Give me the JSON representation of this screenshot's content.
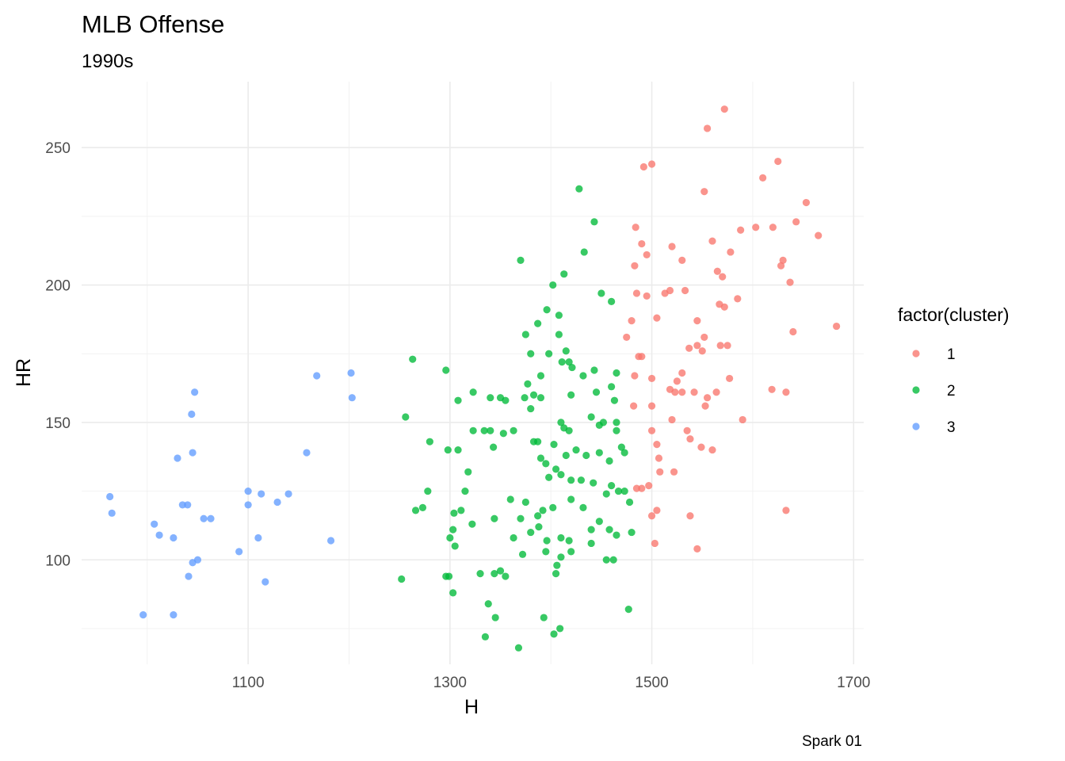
{
  "chart_data": {
    "type": "scatter",
    "title": "MLB Offense",
    "subtitle": "1990s",
    "xlabel": "H",
    "ylabel": "HR",
    "caption": "Spark 01",
    "xlim": [
      935,
      1710
    ],
    "ylim": [
      62,
      274
    ],
    "x_ticks": [
      1100,
      1300,
      1500,
      1700
    ],
    "y_ticks": [
      100,
      150,
      200,
      250
    ],
    "grid": true,
    "legend": {
      "title": "factor(cluster)",
      "position": "right"
    },
    "series": [
      {
        "name": "1",
        "color": "#F8766D",
        "points": [
          [
            1572,
            264
          ],
          [
            1555,
            257
          ],
          [
            1625,
            245
          ],
          [
            1500,
            244
          ],
          [
            1492,
            243
          ],
          [
            1610,
            239
          ],
          [
            1552,
            234
          ],
          [
            1653,
            230
          ],
          [
            1643,
            223
          ],
          [
            1665,
            218
          ],
          [
            1603,
            221
          ],
          [
            1620,
            221
          ],
          [
            1588,
            220
          ],
          [
            1484,
            221
          ],
          [
            1578,
            212
          ],
          [
            1490,
            215
          ],
          [
            1530,
            209
          ],
          [
            1560,
            216
          ],
          [
            1520,
            214
          ],
          [
            1495,
            211
          ],
          [
            1630,
            209
          ],
          [
            1628,
            207
          ],
          [
            1565,
            205
          ],
          [
            1570,
            203
          ],
          [
            1483,
            207
          ],
          [
            1637,
            201
          ],
          [
            1533,
            198
          ],
          [
            1518,
            198
          ],
          [
            1513,
            197
          ],
          [
            1495,
            196
          ],
          [
            1485,
            197
          ],
          [
            1585,
            195
          ],
          [
            1567,
            193
          ],
          [
            1572,
            192
          ],
          [
            1545,
            187
          ],
          [
            1505,
            188
          ],
          [
            1480,
            187
          ],
          [
            1683,
            185
          ],
          [
            1640,
            183
          ],
          [
            1552,
            181
          ],
          [
            1475,
            181
          ],
          [
            1568,
            178
          ],
          [
            1575,
            178
          ],
          [
            1545,
            178
          ],
          [
            1537,
            177
          ],
          [
            1550,
            176
          ],
          [
            1487,
            174
          ],
          [
            1490,
            174
          ],
          [
            1530,
            168
          ],
          [
            1518,
            162
          ],
          [
            1483,
            167
          ],
          [
            1525,
            165
          ],
          [
            1500,
            166
          ],
          [
            1577,
            166
          ],
          [
            1542,
            161
          ],
          [
            1530,
            161
          ],
          [
            1523,
            161
          ],
          [
            1564,
            161
          ],
          [
            1619,
            162
          ],
          [
            1633,
            161
          ],
          [
            1555,
            159
          ],
          [
            1553,
            156
          ],
          [
            1482,
            156
          ],
          [
            1500,
            156
          ],
          [
            1590,
            151
          ],
          [
            1520,
            151
          ],
          [
            1500,
            147
          ],
          [
            1535,
            147
          ],
          [
            1538,
            144
          ],
          [
            1505,
            142
          ],
          [
            1549,
            141
          ],
          [
            1560,
            140
          ],
          [
            1507,
            137
          ],
          [
            1508,
            132
          ],
          [
            1522,
            132
          ],
          [
            1485,
            126
          ],
          [
            1490,
            126
          ],
          [
            1497,
            127
          ],
          [
            1505,
            118
          ],
          [
            1500,
            116
          ],
          [
            1633,
            118
          ],
          [
            1538,
            116
          ],
          [
            1503,
            106
          ],
          [
            1545,
            104
          ]
        ]
      },
      {
        "name": "2",
        "color": "#00BA38",
        "points": [
          [
            1428,
            235
          ],
          [
            1443,
            223
          ],
          [
            1433,
            212
          ],
          [
            1370,
            209
          ],
          [
            1413,
            204
          ],
          [
            1402,
            200
          ],
          [
            1450,
            197
          ],
          [
            1460,
            194
          ],
          [
            1396,
            191
          ],
          [
            1408,
            189
          ],
          [
            1387,
            186
          ],
          [
            1375,
            182
          ],
          [
            1408,
            182
          ],
          [
            1415,
            176
          ],
          [
            1411,
            172
          ],
          [
            1380,
            175
          ],
          [
            1398,
            175
          ],
          [
            1418,
            172
          ],
          [
            1421,
            170
          ],
          [
            1432,
            167
          ],
          [
            1443,
            169
          ],
          [
            1465,
            168
          ],
          [
            1263,
            173
          ],
          [
            1296,
            169
          ],
          [
            1377,
            164
          ],
          [
            1390,
            167
          ],
          [
            1374,
            159
          ],
          [
            1383,
            160
          ],
          [
            1340,
            159
          ],
          [
            1355,
            158
          ],
          [
            1323,
            161
          ],
          [
            1308,
            158
          ],
          [
            1350,
            159
          ],
          [
            1390,
            159
          ],
          [
            1420,
            160
          ],
          [
            1445,
            161
          ],
          [
            1460,
            163
          ],
          [
            1463,
            158
          ],
          [
            1380,
            155
          ],
          [
            1410,
            150
          ],
          [
            1413,
            148
          ],
          [
            1418,
            147
          ],
          [
            1440,
            152
          ],
          [
            1448,
            149
          ],
          [
            1452,
            150
          ],
          [
            1465,
            150
          ],
          [
            1465,
            147
          ],
          [
            1256,
            152
          ],
          [
            1280,
            143
          ],
          [
            1323,
            147
          ],
          [
            1334,
            147
          ],
          [
            1340,
            147
          ],
          [
            1353,
            146
          ],
          [
            1363,
            147
          ],
          [
            1383,
            143
          ],
          [
            1387,
            143
          ],
          [
            1403,
            142
          ],
          [
            1425,
            140
          ],
          [
            1415,
            138
          ],
          [
            1435,
            138
          ],
          [
            1448,
            139
          ],
          [
            1458,
            136
          ],
          [
            1470,
            141
          ],
          [
            1473,
            139
          ],
          [
            1298,
            140
          ],
          [
            1308,
            140
          ],
          [
            1343,
            141
          ],
          [
            1390,
            137
          ],
          [
            1395,
            135
          ],
          [
            1405,
            133
          ],
          [
            1410,
            131
          ],
          [
            1398,
            130
          ],
          [
            1420,
            129
          ],
          [
            1430,
            129
          ],
          [
            1442,
            128
          ],
          [
            1460,
            127
          ],
          [
            1455,
            124
          ],
          [
            1467,
            125
          ],
          [
            1478,
            121
          ],
          [
            1473,
            125
          ],
          [
            1318,
            132
          ],
          [
            1315,
            125
          ],
          [
            1311,
            118
          ],
          [
            1278,
            125
          ],
          [
            1322,
            113
          ],
          [
            1360,
            122
          ],
          [
            1375,
            121
          ],
          [
            1392,
            118
          ],
          [
            1387,
            116
          ],
          [
            1402,
            119
          ],
          [
            1420,
            122
          ],
          [
            1432,
            119
          ],
          [
            1266,
            118
          ],
          [
            1273,
            119
          ],
          [
            1304,
            117
          ],
          [
            1303,
            111
          ],
          [
            1344,
            115
          ],
          [
            1370,
            115
          ],
          [
            1388,
            112
          ],
          [
            1380,
            110
          ],
          [
            1396,
            107
          ],
          [
            1410,
            108
          ],
          [
            1418,
            107
          ],
          [
            1440,
            111
          ],
          [
            1448,
            114
          ],
          [
            1458,
            111
          ],
          [
            1465,
            109
          ],
          [
            1480,
            110
          ],
          [
            1300,
            108
          ],
          [
            1305,
            105
          ],
          [
            1363,
            108
          ],
          [
            1395,
            103
          ],
          [
            1410,
            101
          ],
          [
            1420,
            103
          ],
          [
            1440,
            106
          ],
          [
            1455,
            100
          ],
          [
            1462,
            100
          ],
          [
            1372,
            102
          ],
          [
            1252,
            93
          ],
          [
            1296,
            94
          ],
          [
            1299,
            94
          ],
          [
            1330,
            95
          ],
          [
            1344,
            95
          ],
          [
            1350,
            96
          ],
          [
            1355,
            94
          ],
          [
            1405,
            95
          ],
          [
            1406,
            98
          ],
          [
            1477,
            82
          ],
          [
            1303,
            88
          ],
          [
            1338,
            84
          ],
          [
            1345,
            79
          ],
          [
            1393,
            79
          ],
          [
            1409,
            75
          ],
          [
            1403,
            73
          ],
          [
            1335,
            72
          ],
          [
            1368,
            68
          ]
        ]
      },
      {
        "name": "3",
        "color": "#619CFF",
        "points": [
          [
            1202,
            168
          ],
          [
            1168,
            167
          ],
          [
            1047,
            161
          ],
          [
            1203,
            159
          ],
          [
            1044,
            153
          ],
          [
            1045,
            139
          ],
          [
            1158,
            139
          ],
          [
            1030,
            137
          ],
          [
            1100,
            125
          ],
          [
            1113,
            124
          ],
          [
            1140,
            124
          ],
          [
            963,
            123
          ],
          [
            1035,
            120
          ],
          [
            1040,
            120
          ],
          [
            1100,
            120
          ],
          [
            1129,
            121
          ],
          [
            965,
            117
          ],
          [
            1056,
            115
          ],
          [
            1063,
            115
          ],
          [
            1007,
            113
          ],
          [
            1012,
            109
          ],
          [
            1026,
            108
          ],
          [
            1110,
            108
          ],
          [
            1182,
            107
          ],
          [
            1091,
            103
          ],
          [
            1050,
            100
          ],
          [
            1045,
            99
          ],
          [
            1041,
            94
          ],
          [
            1117,
            92
          ],
          [
            996,
            80
          ],
          [
            1026,
            80
          ]
        ]
      }
    ]
  }
}
